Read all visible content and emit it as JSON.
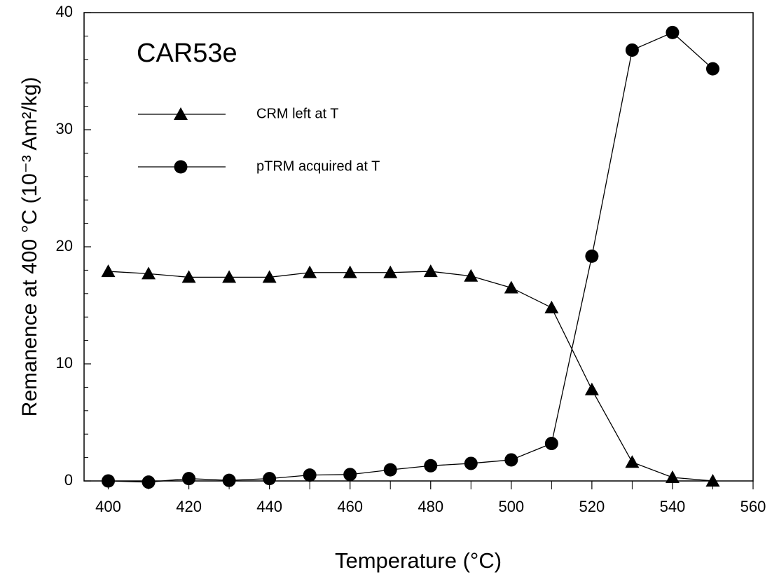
{
  "chart_data": {
    "type": "line",
    "annotation": "CAR53e",
    "x_label": "Temperature (°C)",
    "y_label": "Remanence at 400 °C (10⁻³ Am²/kg)",
    "x": [
      400,
      410,
      420,
      430,
      440,
      450,
      460,
      470,
      480,
      490,
      500,
      510,
      520,
      530,
      540,
      550
    ],
    "series": [
      {
        "name": "CRM left at T",
        "color": "#000000",
        "marker": "triangle",
        "values": [
          17.9,
          17.7,
          17.4,
          17.4,
          17.4,
          17.8,
          17.8,
          17.8,
          17.9,
          17.5,
          16.5,
          14.8,
          7.8,
          1.6,
          0.3,
          0
        ]
      },
      {
        "name": "pTRM acquired at T",
        "color": "#000000",
        "marker": "circle",
        "values": [
          0,
          -0.1,
          0.2,
          0.05,
          0.2,
          0.5,
          0.55,
          0.95,
          1.3,
          1.5,
          1.8,
          3.2,
          19.2,
          36.8,
          38.3,
          35.2
        ]
      }
    ],
    "xlim": [
      394,
      560
    ],
    "xticks": [
      400,
      420,
      440,
      460,
      480,
      500,
      520,
      540,
      560
    ],
    "xminorticks": [
      410,
      430,
      450,
      470,
      490,
      510,
      530,
      550
    ],
    "ylim": [
      0,
      40
    ],
    "yticks": [
      0,
      10,
      20,
      30,
      40
    ],
    "yminorticks": [
      2,
      4,
      6,
      8,
      12,
      14,
      16,
      18,
      22,
      24,
      26,
      28,
      32,
      34,
      36,
      38
    ],
    "grid": false
  }
}
